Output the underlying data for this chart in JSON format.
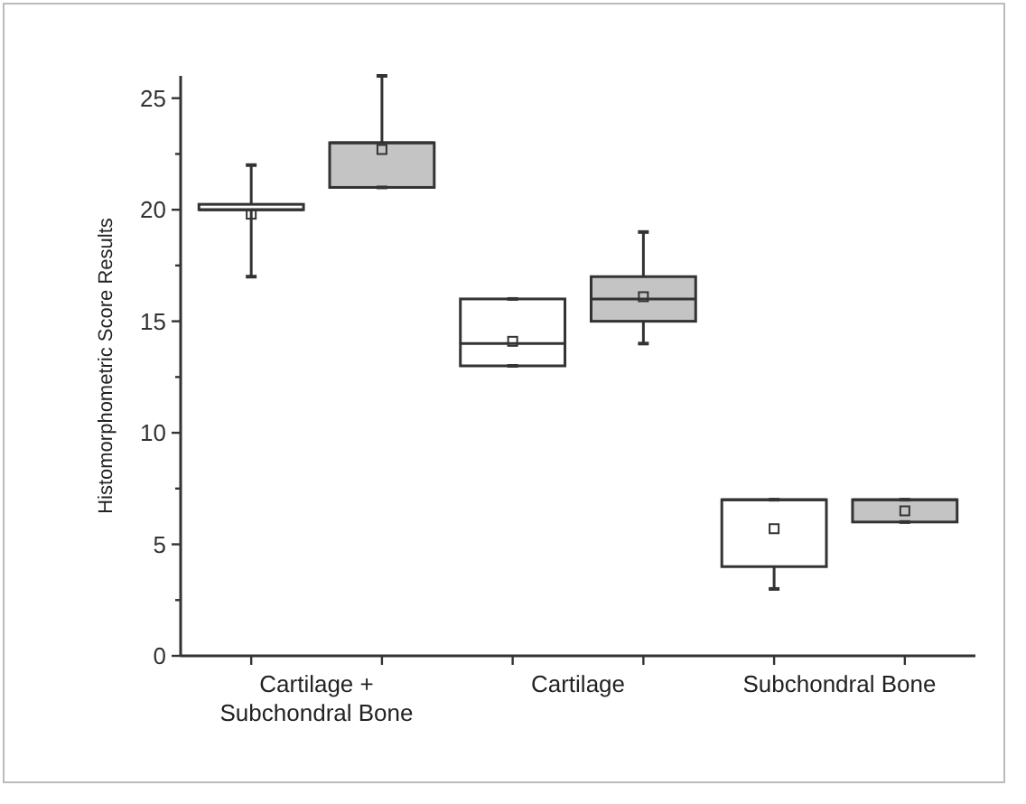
{
  "chart_data": {
    "type": "box",
    "ylabel": "Histomorphometric Score Results",
    "categories": [
      "Cartilage + Subchondral Bone",
      "Cartilage",
      "Subchondral Bone"
    ],
    "ylim": [
      0,
      26
    ],
    "yticks": [
      0,
      {
        "value": 2.5,
        "label": null
      },
      5,
      {
        "value": 7.5,
        "label": null
      },
      10,
      {
        "value": 12.5,
        "label": null
      },
      15,
      {
        "value": 17.5,
        "label": null
      },
      20,
      {
        "value": 22.5,
        "label": null
      },
      25
    ],
    "series": [
      {
        "color": "#ffffff",
        "boxes": [
          {
            "low": 17,
            "q1": 20,
            "median": 20,
            "q3": 20,
            "high": 22,
            "mean": 19.8
          },
          {
            "low": 13,
            "q1": 13,
            "median": 14,
            "q3": 16,
            "high": 16,
            "mean": 14.1
          },
          {
            "low": 3,
            "q1": 4,
            "median": 7,
            "q3": 7,
            "high": 7,
            "mean": 5.7
          }
        ]
      },
      {
        "color": "#c4c4c4",
        "boxes": [
          {
            "low": 21,
            "q1": 21,
            "median": 23,
            "q3": 23,
            "high": 26,
            "mean": 22.7
          },
          {
            "low": 14,
            "q1": 15,
            "median": 16,
            "q3": 17,
            "high": 19,
            "mean": 16.1
          },
          {
            "low": 6,
            "q1": 6,
            "median": 7,
            "q3": 7,
            "high": 7,
            "mean": 6.5
          }
        ]
      }
    ],
    "marker": "square",
    "grid": false
  }
}
